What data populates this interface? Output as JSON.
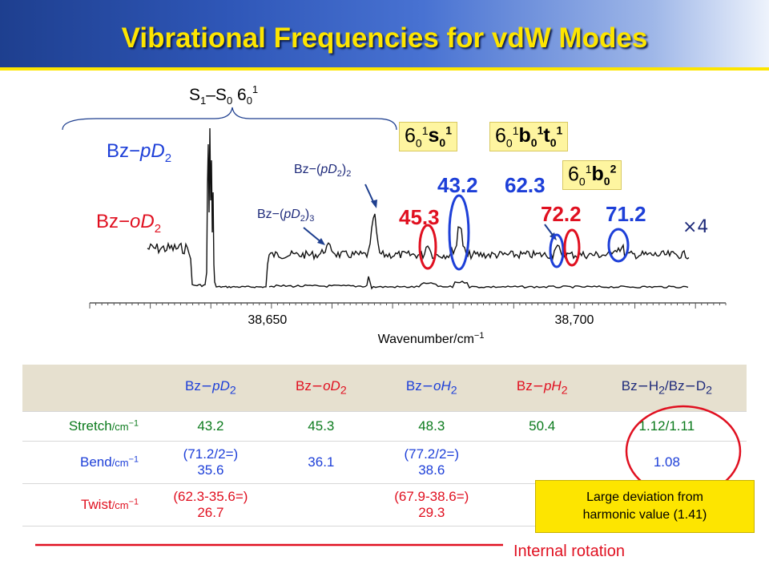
{
  "title": "Vibrational Frequencies for vdW Modes",
  "chart_data": {
    "type": "line",
    "xlabel_base": "Wavenumber/cm",
    "xlabel_exp": "−1",
    "xlim": [
      38620,
      38725
    ],
    "ticks": [
      {
        "value": 38650,
        "label": "38,650"
      },
      {
        "value": 38700,
        "label": "38,700"
      }
    ],
    "series": [
      {
        "name": "Bz−pD2",
        "name_base": "Bz−",
        "name_it": "pD",
        "name_sub": "2",
        "color": "#1d3fd8"
      },
      {
        "name": "Bz−oD2",
        "name_base": "Bz−",
        "name_it": "oD",
        "name_sub": "2",
        "color": "#e01020"
      }
    ],
    "band_label": {
      "base": "S",
      "sub1": "1",
      "mid": "–S",
      "sub2": "0",
      "tail": " 6",
      "sub3": "0",
      "sup3": "1"
    },
    "annotations": [
      {
        "text_base": "Bz",
        "text_sym": "−",
        "text_paren": "(",
        "text_it": "pD",
        "text_sub": "2",
        "text_close": ")",
        "text_sub2": "2",
        "id": "dimer"
      },
      {
        "text_base": "Bz",
        "text_sym": "−",
        "text_paren": "(",
        "text_it": "pD",
        "text_sub": "2",
        "text_close": ")",
        "text_sub2": "3",
        "id": "trimer"
      }
    ],
    "peak_labels": [
      {
        "value": "45.3",
        "color": "#e01020",
        "series": "Bz−oD2"
      },
      {
        "value": "43.2",
        "color": "#1d3fd8",
        "series": "Bz−pD2"
      },
      {
        "value": "62.3",
        "color": "#1d3fd8",
        "series": "Bz−pD2"
      },
      {
        "value": "72.2",
        "color": "#e01020",
        "series": "Bz−oD2"
      },
      {
        "value": "71.2",
        "color": "#1d3fd8",
        "series": "Bz−pD2"
      }
    ],
    "scale_factor": "×4"
  },
  "tags": [
    {
      "id": "s",
      "base": "6",
      "sub": "0",
      "sup": "1",
      "mode": "s",
      "msub": "0",
      "msup": "1"
    },
    {
      "id": "bt",
      "base": "6",
      "sub": "0",
      "sup": "1",
      "mode": "b",
      "msub": "0",
      "msup": "1",
      "mode2": "t",
      "m2sub": "0",
      "m2sup": "1"
    },
    {
      "id": "b2",
      "base": "6",
      "sub": "0",
      "sup": "1",
      "mode": "b",
      "msub": "0",
      "msup": "2"
    }
  ],
  "table": {
    "headers": [
      {
        "pre": "Bz",
        "it": "pD",
        "sub": "2",
        "color": "#1d3fd8"
      },
      {
        "pre": "Bz",
        "it": "oD",
        "sub": "2",
        "color": "#e01020"
      },
      {
        "pre": "Bz",
        "it": "oH",
        "sub": "2",
        "color": "#1d3fd8"
      },
      {
        "pre": "Bz",
        "it": "pH",
        "sub": "2",
        "color": "#e01020"
      }
    ],
    "ratio_header": {
      "pre": "Bz",
      "h": "H",
      "hsub": "2",
      "slash": "/Bz",
      "d": "D",
      "dsub": "2"
    },
    "unit_base": "/cm",
    "unit_exp": "−1",
    "rows": {
      "stretch": {
        "label": "Stretch",
        "values": [
          "43.2",
          "45.3",
          "48.3",
          "50.4"
        ],
        "ratio": "1.12/1.11"
      },
      "bend": {
        "label": "Bend",
        "c1a": "(71.2/2=)",
        "c1b": "35.6",
        "c2": "36.1",
        "c3a": "(77.2/2=)",
        "c3b": "38.6",
        "c4": "",
        "ratio": "1.08"
      },
      "twist": {
        "label": "Twist",
        "c1a": "(62.3-35.6=)",
        "c1b": "26.7",
        "c2": "",
        "c3a": "(67.9-38.6=)",
        "c3b": "29.3"
      }
    }
  },
  "note": {
    "line1": "Large deviation from",
    "line2": "harmonic value (1.41)"
  },
  "internal_rotation": "Internal rotation",
  "colors": {
    "blue": "#1d3fd8",
    "red": "#e01020",
    "green": "#0b7a1c",
    "title": "#fde500"
  }
}
